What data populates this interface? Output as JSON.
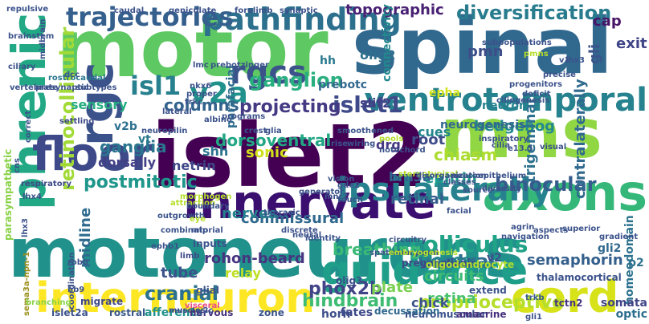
{
  "words": [
    {
      "text": "motoneurons",
      "color": "#21918c"
    },
    {
      "text": "islet2",
      "color": "#440154"
    },
    {
      "text": "spinal",
      "color": "#31688e"
    },
    {
      "text": "motor",
      "color": "#5ec962"
    },
    {
      "text": "mns",
      "color": "#90d743"
    },
    {
      "text": "axons",
      "color": "#35b779"
    },
    {
      "text": "innervate",
      "color": "#3b0f70"
    },
    {
      "text": "interneuron",
      "color": "#fde725"
    },
    {
      "text": "guidance",
      "color": "#1f9e89"
    },
    {
      "text": "cord",
      "color": "#d8e219"
    },
    {
      "text": "phrenic",
      "color": "#22a884"
    },
    {
      "text": "floor",
      "color": "#3e4989"
    },
    {
      "text": "ventrotemporal",
      "color": "#26828e"
    },
    {
      "text": "ipsilaterally",
      "color": "#26828e"
    },
    {
      "text": "pathfinding",
      "color": "#2d708e"
    },
    {
      "text": "rgc",
      "color": "#3b528b"
    },
    {
      "text": "rgcs",
      "color": "#3b528b"
    },
    {
      "text": "v2a",
      "color": "#21918c"
    },
    {
      "text": "isl1",
      "color": "#27808e"
    },
    {
      "text": "trajectories",
      "color": "#355f8d"
    },
    {
      "text": "islet1",
      "color": "#3e4a89"
    },
    {
      "text": "topographic",
      "color": "#482173"
    },
    {
      "text": "diversification",
      "color": "#287c8e"
    },
    {
      "text": "retinocollicular",
      "color": "#a2da37"
    },
    {
      "text": "ganglion",
      "color": "#29af7f"
    },
    {
      "text": "projecting",
      "color": "#443983"
    },
    {
      "text": "columns",
      "color": "#33638d"
    },
    {
      "text": "binocular",
      "color": "#365c8d"
    },
    {
      "text": "postmitotic",
      "color": "#1f968b"
    },
    {
      "text": "colliculus",
      "color": "#20a386"
    },
    {
      "text": "proprioceptive",
      "color": "#b5de2b"
    },
    {
      "text": "hindbrain",
      "color": "#3fbc73"
    },
    {
      "text": "ventral",
      "color": "#2e6e8e"
    },
    {
      "text": "cranial",
      "color": "#2c728e"
    },
    {
      "text": "chiasm",
      "color": "#addc30"
    },
    {
      "text": "hedgehog",
      "color": "#238a8d"
    },
    {
      "text": "phox2b",
      "color": "#414487"
    },
    {
      "text": "ephrin",
      "color": "#1e9b8a"
    },
    {
      "text": "cones",
      "color": "#25858e"
    },
    {
      "text": "breathing",
      "color": "#3aba76"
    },
    {
      "text": "pmn",
      "color": "#3d4e8a"
    },
    {
      "text": "ganglia",
      "color": "#2a768e"
    },
    {
      "text": "dorsoventral",
      "color": "#22a785"
    },
    {
      "text": "rohon-beard",
      "color": "#463480"
    },
    {
      "text": "cap",
      "color": "#481467"
    },
    {
      "text": "exit",
      "color": "#404588"
    },
    {
      "text": "gli",
      "color": "#3a548c"
    },
    {
      "text": "retina",
      "color": "#4ac16d"
    },
    {
      "text": "semaphorin",
      "color": "#34608d"
    },
    {
      "text": "circuits",
      "color": "#3dbc74"
    },
    {
      "text": "trigeminal",
      "color": "#2d718e"
    },
    {
      "text": "contralaterally",
      "color": "#306a8e"
    },
    {
      "text": "commissural",
      "color": "#30698e"
    },
    {
      "text": "nerves",
      "color": "#26818e"
    },
    {
      "text": "root",
      "color": "#3e4c8a"
    },
    {
      "text": "drg",
      "color": "#453781"
    },
    {
      "text": "plate",
      "color": "#7ad151"
    },
    {
      "text": "tube",
      "color": "#3b528b"
    },
    {
      "text": "retinal",
      "color": "#355e8d"
    },
    {
      "text": "midline",
      "color": "#2f6b8e"
    },
    {
      "text": "olig2",
      "color": "#2e6f8e"
    },
    {
      "text": "slit2",
      "color": "#424086"
    },
    {
      "text": "sonic",
      "color": "#d0e11c"
    },
    {
      "text": "shh",
      "color": "#2b748e"
    },
    {
      "text": "netrin",
      "color": "#3f4788"
    },
    {
      "text": "cues",
      "color": "#24878e"
    },
    {
      "text": "brn3a",
      "color": "#32658e"
    },
    {
      "text": "dorsally",
      "color": "#424086"
    },
    {
      "text": "sensory",
      "color": "#26ad81"
    },
    {
      "text": "v2b",
      "color": "#2c718e"
    },
    {
      "text": "vt",
      "color": "#2a788e"
    },
    {
      "text": "hh",
      "color": "#29798e"
    },
    {
      "text": "prebotc",
      "color": "#31678e"
    },
    {
      "text": "parafacial",
      "color": "#2e6d8e"
    },
    {
      "text": "connectivity",
      "color": "#23888e"
    },
    {
      "text": "neurogenesis",
      "color": "#31688e"
    },
    {
      "text": "neuron",
      "color": "#26828e"
    },
    {
      "text": "epha",
      "color": "#d2e21b"
    },
    {
      "text": "chick",
      "color": "#3b528b"
    },
    {
      "text": "relay",
      "color": "#bddf26"
    },
    {
      "text": "v2",
      "color": "#3c508b"
    },
    {
      "text": "gli2",
      "color": "#31688e"
    },
    {
      "text": "p2",
      "color": "#2c728e"
    },
    {
      "text": "homeodomain",
      "color": "#2c728e"
    },
    {
      "text": "somata",
      "color": "#414487"
    },
    {
      "text": "optic",
      "color": "#2e6e8e"
    },
    {
      "text": "afferents",
      "color": "#21918c"
    },
    {
      "text": "fates",
      "color": "#3e4a89"
    },
    {
      "text": "horn",
      "color": "#3c4f8a"
    },
    {
      "text": "muscles",
      "color": "#404688"
    },
    {
      "text": "rostral",
      "color": "#38598c"
    },
    {
      "text": "islet2a",
      "color": "#3b528b"
    },
    {
      "text": "nervous",
      "color": "#46327e"
    },
    {
      "text": "zone",
      "color": "#3a538b"
    },
    {
      "text": "neuromuscular",
      "color": "#3b528b"
    },
    {
      "text": "amacrine",
      "color": "#46307e"
    },
    {
      "text": "decussation",
      "color": "#30698e"
    },
    {
      "text": "extend",
      "color": "#3b528b"
    },
    {
      "text": "visceral",
      "color": "#ea4f8a"
    },
    {
      "text": "preganglionic",
      "color": "#3f4788"
    },
    {
      "text": "oligodendrocyte",
      "color": "#b2dd2c"
    },
    {
      "text": "thalamocortical",
      "color": "#3b528b"
    },
    {
      "text": "tctn2",
      "color": "#46337f"
    },
    {
      "text": "trkb",
      "color": "#38598c"
    },
    {
      "text": "gli1",
      "color": "#3b528b"
    },
    {
      "text": "v2c",
      "color": "#38598c"
    },
    {
      "text": "olig3",
      "color": "#3c4f8a"
    },
    {
      "text": "glial",
      "color": "#3b528b"
    },
    {
      "text": "limb",
      "color": "#3e4a89"
    },
    {
      "text": "inputs",
      "color": "#3b528b"
    },
    {
      "text": "mip",
      "color": "#3c4f8a"
    },
    {
      "text": "ephb1",
      "color": "#3b528b"
    },
    {
      "text": "robo",
      "color": "#3b528b"
    },
    {
      "text": "hb9",
      "color": "#3b528b"
    },
    {
      "text": "migrate",
      "color": "#3f4788"
    },
    {
      "text": "coordination",
      "color": "#3b528b"
    },
    {
      "text": "sema3a-npn-1",
      "color": "#9b8e1a"
    },
    {
      "text": "branching",
      "color": "#8ad247"
    },
    {
      "text": "parasympathetic",
      "color": "#8ad247"
    },
    {
      "text": "lhx3",
      "color": "#3b528b"
    },
    {
      "text": "lhx4",
      "color": "#3b528b"
    },
    {
      "text": "respiratory",
      "color": "#3e4a89"
    },
    {
      "text": "correct",
      "color": "#3b528b"
    },
    {
      "text": "cns",
      "color": "#3b528b"
    },
    {
      "text": "subtypes",
      "color": "#3b528b"
    },
    {
      "text": "rostrocaudal",
      "color": "#2a778e"
    },
    {
      "text": "settling",
      "color": "#3e4a89"
    },
    {
      "text": "dcc",
      "color": "#3b528b"
    },
    {
      "text": "presynaptic",
      "color": "#3b528b"
    },
    {
      "text": "vertebrate",
      "color": "#3b528b"
    },
    {
      "text": "midbrain",
      "color": "#3b528b"
    },
    {
      "text": "caudal",
      "color": "#3b528b"
    },
    {
      "text": "geniculate",
      "color": "#3b528b"
    },
    {
      "text": "forelimb",
      "color": "#3b528b"
    },
    {
      "text": "synaptic",
      "color": "#3b528b"
    },
    {
      "text": "brainstem",
      "color": "#3b528b"
    },
    {
      "text": "repulsive",
      "color": "#3b528b"
    },
    {
      "text": "ciliary",
      "color": "#3b528b"
    },
    {
      "text": "lmc",
      "color": "#3b528b"
    },
    {
      "text": "prebotzinger",
      "color": "#3b528b"
    },
    {
      "text": "nkx6",
      "color": "#3b528b"
    },
    {
      "text": "trkc",
      "color": "#3b528b"
    },
    {
      "text": "lateral",
      "color": "#3b528b"
    },
    {
      "text": "proper",
      "color": "#3b528b"
    },
    {
      "text": "programs",
      "color": "#3b528b"
    },
    {
      "text": "albino",
      "color": "#3b528b"
    },
    {
      "text": "neuropilin",
      "color": "#3b528b"
    },
    {
      "text": "crest",
      "color": "#3b528b"
    },
    {
      "text": "glia",
      "color": "#3b528b"
    },
    {
      "text": "smoothened",
      "color": "#3b528b"
    },
    {
      "text": "wiring",
      "color": "#3b528b"
    },
    {
      "text": "rise",
      "color": "#3b528b"
    },
    {
      "text": "pools",
      "color": "#b5de2b"
    },
    {
      "text": "notochord",
      "color": "#3b528b"
    },
    {
      "text": "vision",
      "color": "#3b528b"
    },
    {
      "text": "generator",
      "color": "#3b528b"
    },
    {
      "text": "gde2",
      "color": "#3b528b"
    },
    {
      "text": "mnr2",
      "color": "#3b528b"
    },
    {
      "text": "touch",
      "color": "#3b528b"
    },
    {
      "text": "morphogen",
      "color": "#b5de2b"
    },
    {
      "text": "attraction",
      "color": "#b5de2b"
    },
    {
      "text": "boundary",
      "color": "#3b528b"
    },
    {
      "text": "outgrowth",
      "color": "#3b528b"
    },
    {
      "text": "eye",
      "color": "#b5de2b"
    },
    {
      "text": "combinatorial",
      "color": "#3b528b"
    },
    {
      "text": "thoracic",
      "color": "#3b528b"
    },
    {
      "text": "discrete",
      "color": "#3b528b"
    },
    {
      "text": "identity",
      "color": "#3b528b"
    },
    {
      "text": "neural",
      "color": "#3b528b"
    },
    {
      "text": "spatiotemporal",
      "color": "#3b528b"
    },
    {
      "text": "embryogenesis",
      "color": "#b5de2b"
    },
    {
      "text": "circuitry",
      "color": "#3b528b"
    },
    {
      "text": "facial",
      "color": "#3b528b"
    },
    {
      "text": "navigation",
      "color": "#3b528b"
    },
    {
      "text": "agrin",
      "color": "#3b528b"
    },
    {
      "text": "aspects",
      "color": "#3b528b"
    },
    {
      "text": "superior",
      "color": "#3b528b"
    },
    {
      "text": "gradient",
      "color": "#3b528b"
    },
    {
      "text": "stereotypical",
      "color": "#b5de2b"
    },
    {
      "text": "disorganization",
      "color": "#3b528b"
    },
    {
      "text": "classes",
      "color": "#3b528b"
    },
    {
      "text": "neuroepithelium",
      "color": "#3b528b"
    },
    {
      "text": "source",
      "color": "#3b528b"
    },
    {
      "text": "cilia",
      "color": "#3b528b"
    },
    {
      "text": "e13.5",
      "color": "#3b528b"
    },
    {
      "text": "visual",
      "color": "#3b528b"
    },
    {
      "text": "diversity",
      "color": "#3b528b"
    },
    {
      "text": "inspiratory",
      "color": "#3b528b"
    },
    {
      "text": "ciliogenesis",
      "color": "#3b528b"
    },
    {
      "text": "progenitors",
      "color": "#3b528b"
    },
    {
      "text": "precise",
      "color": "#3b528b"
    },
    {
      "text": "pmns",
      "color": "#b5de2b"
    },
    {
      "text": "deficit",
      "color": "#3b528b"
    },
    {
      "text": "subpopulations",
      "color": "#3b528b"
    },
    {
      "text": "v1",
      "color": "#3b528b"
    },
    {
      "text": "lhx3",
      "color": "#3b528b"
    }
  ]
}
